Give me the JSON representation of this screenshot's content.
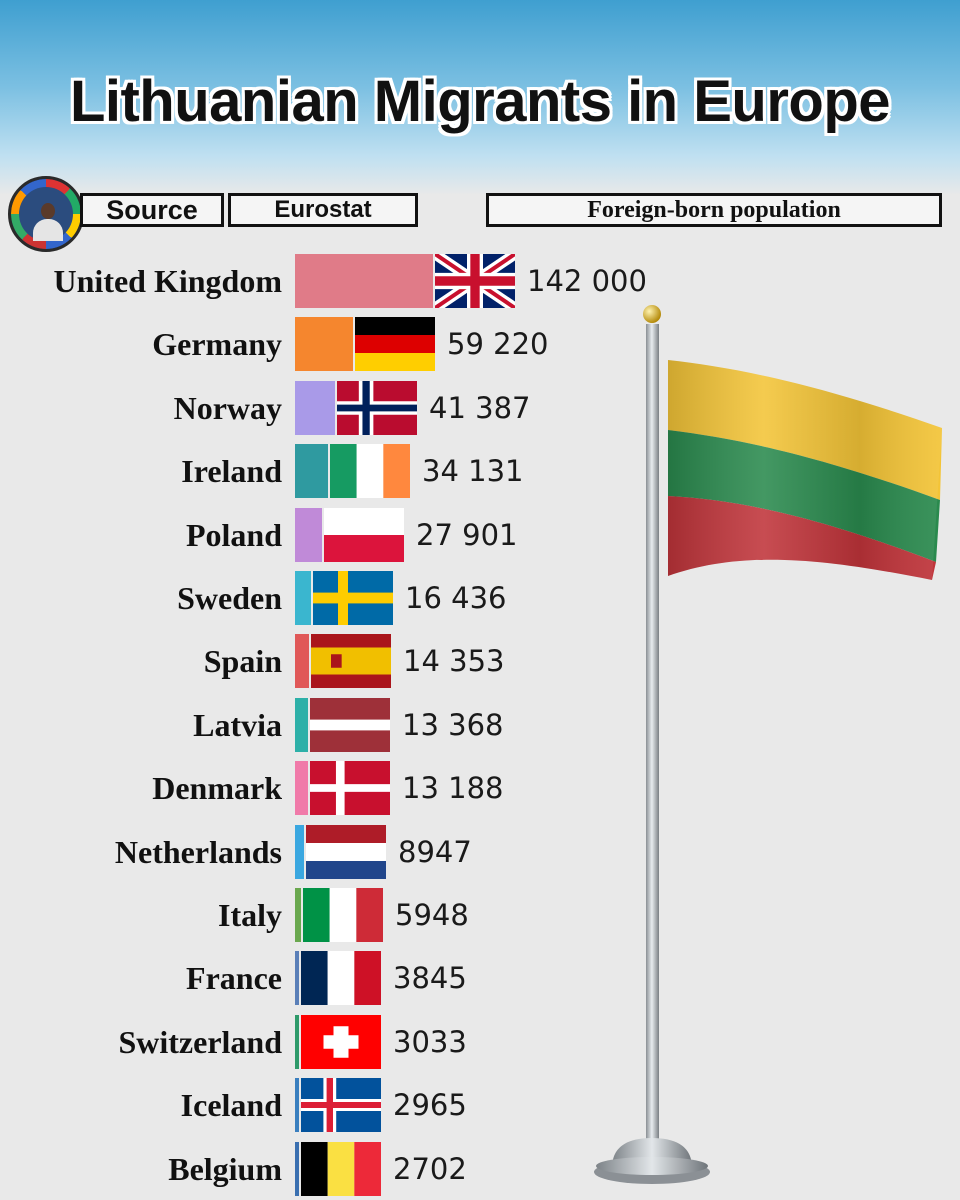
{
  "title": "Lithuanian Migrants in Europe",
  "source_label": "Source",
  "source_value": "Eurostat",
  "measure": "Foreign-born population",
  "chart_data": {
    "type": "bar",
    "orientation": "horizontal",
    "categories": [
      "United Kingdom",
      "Germany",
      "Norway",
      "Ireland",
      "Poland",
      "Sweden",
      "Spain",
      "Latvia",
      "Denmark",
      "Netherlands",
      "Italy",
      "France",
      "Switzerland",
      "Iceland",
      "Belgium"
    ],
    "values": [
      142000,
      59220,
      41387,
      34131,
      27901,
      16436,
      14353,
      13368,
      13188,
      8947,
      5948,
      3845,
      3033,
      2965,
      2702
    ],
    "value_labels": [
      "142 000",
      "59 220",
      "41 387",
      "34 131",
      "27 901",
      "16 436",
      "14 353",
      "13 368",
      "13 188",
      "8947",
      "5948",
      "3845",
      "3033",
      "2965",
      "2702"
    ],
    "bar_colors": [
      "#e07b88",
      "#f5862e",
      "#a99ae8",
      "#2f9aa0",
      "#c08ad8",
      "#3ab6cf",
      "#e05858",
      "#2db0a8",
      "#f07aa9",
      "#3aa7e0",
      "#6aa84f",
      "#5a7fb8",
      "#2e9a6a",
      "#3a7fbf",
      "#3a6fb0"
    ],
    "flags": [
      "uk-flag-icon",
      "germany-flag-icon",
      "norway-flag-icon",
      "ireland-flag-icon",
      "poland-flag-icon",
      "sweden-flag-icon",
      "spain-flag-icon",
      "latvia-flag-icon",
      "denmark-flag-icon",
      "netherlands-flag-icon",
      "italy-flag-icon",
      "france-flag-icon",
      "switzerland-flag-icon",
      "iceland-flag-icon",
      "belgium-flag-icon"
    ],
    "xlim": [
      0,
      142000
    ],
    "grid": false,
    "legend": "none"
  },
  "decoration": {
    "flagpole": "lithuania-flag-icon",
    "lithuania_colors": [
      "#f3c437",
      "#2a8a4e",
      "#c0343a"
    ]
  }
}
